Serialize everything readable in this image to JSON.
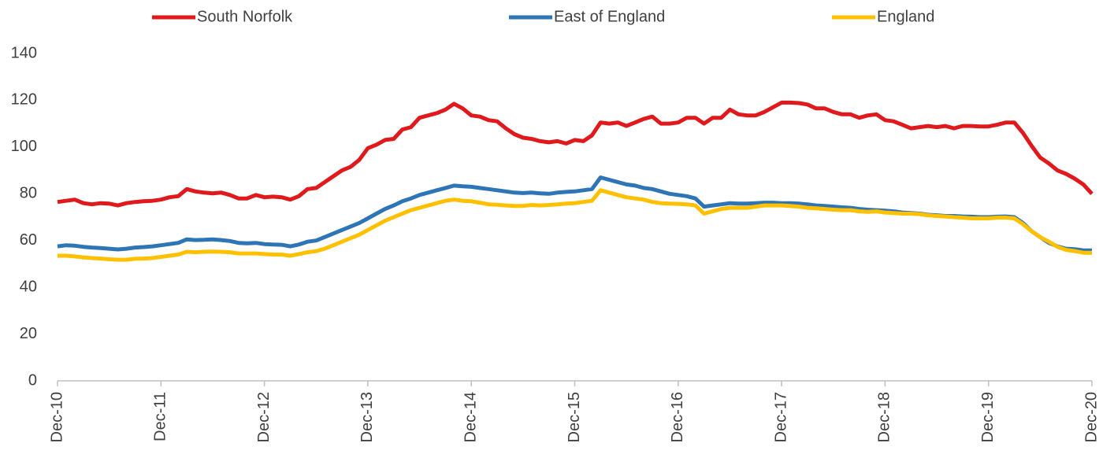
{
  "chart_data": {
    "type": "line",
    "categories": [
      "Dec-10",
      null,
      null,
      null,
      null,
      null,
      null,
      null,
      null,
      null,
      null,
      null,
      "Dec-11",
      null,
      null,
      null,
      null,
      null,
      null,
      null,
      null,
      null,
      null,
      null,
      "Dec-12",
      null,
      null,
      null,
      null,
      null,
      null,
      null,
      null,
      null,
      null,
      null,
      "Dec-13",
      null,
      null,
      null,
      null,
      null,
      null,
      null,
      null,
      null,
      null,
      null,
      "Dec-14",
      null,
      null,
      null,
      null,
      null,
      null,
      null,
      null,
      null,
      null,
      null,
      "Dec-15",
      null,
      null,
      null,
      null,
      null,
      null,
      null,
      null,
      null,
      null,
      null,
      "Dec-16",
      null,
      null,
      null,
      null,
      null,
      null,
      null,
      null,
      null,
      null,
      null,
      "Dec-17",
      null,
      null,
      null,
      null,
      null,
      null,
      null,
      null,
      null,
      null,
      null,
      "Dec-18",
      null,
      null,
      null,
      null,
      null,
      null,
      null,
      null,
      null,
      null,
      null,
      "Dec-19",
      null,
      null,
      null,
      null,
      null,
      null,
      null,
      null,
      null,
      null,
      null,
      "Dec-20"
    ],
    "series": [
      {
        "name": "South Norfolk",
        "color": "#e0191c",
        "values": [
          76.5,
          77,
          77.5,
          76,
          75.5,
          76,
          75.8,
          75,
          76,
          76.5,
          76.8,
          77,
          77.5,
          78.5,
          79,
          82,
          81,
          80.5,
          80.2,
          80.5,
          79.5,
          78,
          78,
          79.5,
          78.5,
          78.8,
          78.5,
          77.5,
          79,
          82,
          82.5,
          85,
          87.5,
          90,
          91.5,
          94.5,
          99.5,
          101,
          103,
          103.5,
          107.5,
          108.5,
          112.5,
          113.5,
          114.5,
          116,
          118.5,
          116.5,
          113.5,
          113,
          111.5,
          111,
          108,
          105.5,
          104,
          103.5,
          102.5,
          102,
          102.5,
          101.5,
          103,
          102.5,
          105,
          110.5,
          110,
          110.5,
          109,
          110.5,
          112,
          113,
          110,
          110,
          110.5,
          112.5,
          112.5,
          110,
          112.5,
          112.5,
          116,
          114,
          113.5,
          113.5,
          115,
          117,
          119,
          119,
          118.8,
          118.2,
          116.5,
          116.5,
          115,
          114,
          114,
          112.5,
          113.5,
          114,
          111.5,
          111,
          109.5,
          108,
          108.5,
          109,
          108.5,
          109,
          108,
          109,
          109,
          108.8,
          108.8,
          109.5,
          110.5,
          110.5,
          106,
          100.5,
          95.5,
          93,
          90,
          88.5,
          86.5,
          84,
          80
        ]
      },
      {
        "name": "East of England",
        "color": "#2e75b6",
        "values": [
          57.5,
          58,
          57.8,
          57.3,
          57,
          56.8,
          56.5,
          56.2,
          56.5,
          57,
          57.2,
          57.5,
          58,
          58.5,
          59,
          60.5,
          60.2,
          60.3,
          60.5,
          60.2,
          59.8,
          59,
          58.8,
          59,
          58.5,
          58.3,
          58.2,
          57.5,
          58.3,
          59.5,
          60,
          61.5,
          63,
          64.5,
          66,
          67.5,
          69.5,
          71.5,
          73.5,
          75,
          76.8,
          78,
          79.5,
          80.5,
          81.5,
          82.5,
          83.5,
          83.2,
          83,
          82.5,
          82,
          81.5,
          81,
          80.5,
          80.3,
          80.5,
          80.2,
          80,
          80.5,
          80.8,
          81,
          81.5,
          82,
          87,
          86,
          85,
          84,
          83.5,
          82.5,
          82,
          81,
          80,
          79.5,
          79,
          78,
          74.5,
          75,
          75.5,
          76,
          75.8,
          75.8,
          76,
          76.2,
          76.2,
          76,
          76,
          75.8,
          75.5,
          75,
          74.8,
          74.5,
          74.2,
          74,
          73.5,
          73.2,
          73,
          72.8,
          72.5,
          72,
          71.8,
          71.5,
          71,
          70.8,
          70.5,
          70.5,
          70.3,
          70.2,
          70,
          70,
          70.2,
          70.3,
          70,
          67.5,
          64,
          61.5,
          59,
          57.5,
          56.5,
          56.3,
          55.8,
          55.8
        ]
      },
      {
        "name": "England",
        "color": "#ffc000",
        "values": [
          53.5,
          53.5,
          53.2,
          52.8,
          52.5,
          52.3,
          52,
          51.8,
          51.8,
          52.2,
          52.3,
          52.5,
          53,
          53.5,
          54,
          55.2,
          55,
          55.2,
          55.3,
          55.2,
          55,
          54.5,
          54.5,
          54.5,
          54.2,
          54,
          54,
          53.5,
          54.2,
          55,
          55.5,
          56.5,
          58,
          59.5,
          61,
          62.5,
          64.5,
          66.5,
          68.5,
          70,
          71.5,
          73,
          74,
          75,
          76,
          77,
          77.5,
          77,
          76.8,
          76.2,
          75.5,
          75.3,
          75,
          74.8,
          74.8,
          75.2,
          75,
          75.2,
          75.5,
          75.8,
          76,
          76.5,
          77,
          81.5,
          80.5,
          79.5,
          78.5,
          78,
          77.5,
          76.5,
          76,
          75.8,
          75.7,
          75.5,
          75,
          71.5,
          72.5,
          73.5,
          74,
          74,
          74,
          74.5,
          75,
          75,
          75,
          74.8,
          74.5,
          74,
          73.8,
          73.5,
          73.2,
          73,
          73,
          72.5,
          72.3,
          72.5,
          72,
          71.8,
          71.5,
          71.5,
          71.3,
          70.8,
          70.5,
          70.3,
          70,
          69.8,
          69.5,
          69.5,
          69.5,
          69.8,
          69.8,
          69.5,
          67,
          64,
          61.5,
          59.5,
          57.3,
          56,
          55.5,
          54.8,
          54.8
        ]
      }
    ],
    "ylim": [
      0,
      140
    ],
    "yticks": [
      0,
      20,
      40,
      60,
      80,
      100,
      120,
      140
    ],
    "grid": false,
    "legend": "top"
  }
}
